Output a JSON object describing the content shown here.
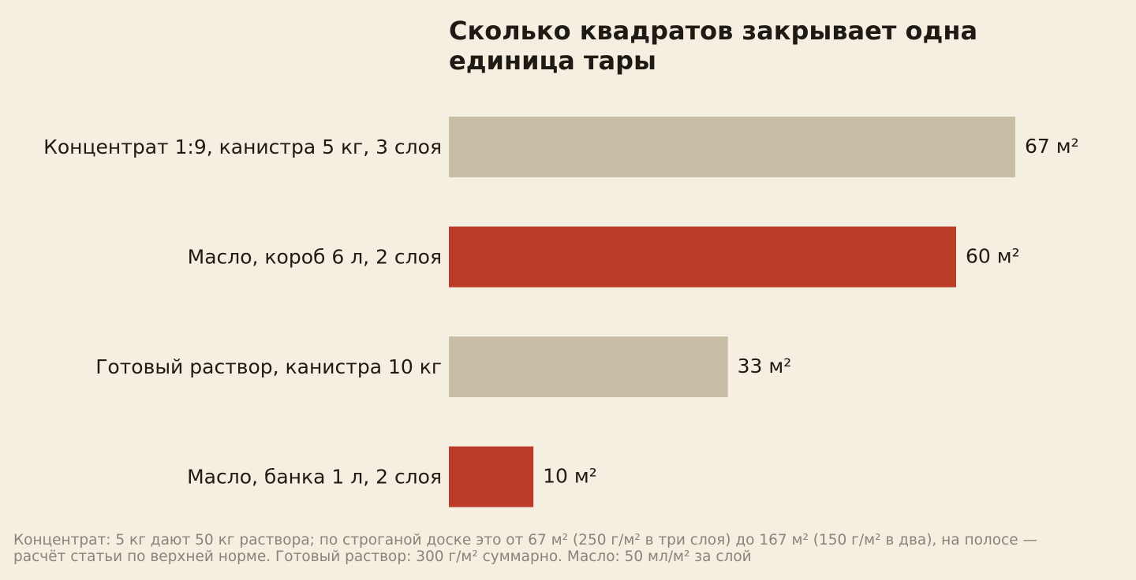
{
  "chart_data": {
    "type": "bar",
    "orientation": "horizontal",
    "title": "Сколько квадратов закрывает одна единица тары",
    "categories": [
      "Концентрат 1:9, канистра 5 кг, 3 слоя",
      "Масло, короб 6 л, 2 слоя",
      "Готовый раствор, канистра 10 кг",
      "Масло, банка 1 л, 2 слоя"
    ],
    "values": [
      67,
      60,
      33,
      10
    ],
    "value_labels": [
      "67 м²",
      "60 м²",
      "33 м²",
      "10 м²"
    ],
    "bar_colors": [
      "#c8bea6",
      "#bc3c27",
      "#c8bea6",
      "#bc3c27"
    ],
    "xlim": [
      0,
      67
    ],
    "grid": false,
    "axes_visible": false
  },
  "footnote": {
    "line1": "Концентрат: 5 кг дают 50 кг раствора; по строганой доске это от 67 м² (250 г/м² в три слоя) до 167 м² (150 г/м² в два), на полосе —",
    "line2": "расчёт статьи по верхней норме. Готовый раствор: 300 г/м² суммарно. Масло: 50 мл/м² за слой"
  }
}
